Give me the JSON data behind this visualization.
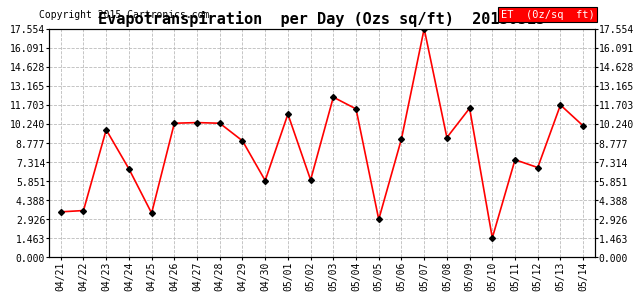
{
  "title": "Evapotranspiration  per Day (Ozs sq/ft)  20150515",
  "copyright_text": "Copyright 2015 Cartronics.com",
  "legend_label": "ET  (0z/sq  ft)",
  "dates": [
    "04/21",
    "04/22",
    "04/23",
    "04/24",
    "04/25",
    "04/26",
    "04/27",
    "04/28",
    "04/29",
    "04/30",
    "05/01",
    "05/02",
    "05/03",
    "05/04",
    "05/05",
    "05/06",
    "05/07",
    "05/08",
    "05/09",
    "05/10",
    "05/11",
    "05/12",
    "05/13",
    "05/14"
  ],
  "values": [
    3.5,
    3.6,
    9.8,
    6.8,
    3.4,
    10.3,
    10.35,
    10.3,
    8.95,
    5.9,
    11.0,
    5.95,
    12.3,
    11.4,
    2.92,
    9.1,
    17.554,
    9.2,
    11.45,
    1.5,
    7.5,
    6.9,
    11.7,
    10.1
  ],
  "yticks": [
    0.0,
    1.463,
    2.926,
    4.388,
    5.851,
    7.314,
    8.777,
    10.24,
    11.703,
    13.165,
    14.628,
    16.091,
    17.554
  ],
  "ymin": 0.0,
  "ymax": 17.554,
  "line_color": "red",
  "marker_color": "black",
  "marker_style": "D",
  "marker_size": 3,
  "legend_bg_color": "red",
  "legend_text_color": "white",
  "background_color": "white",
  "grid_color": "#bbbbbb",
  "title_fontsize": 11,
  "axis_fontsize": 7,
  "copyright_fontsize": 7,
  "legend_fontsize": 7.5
}
